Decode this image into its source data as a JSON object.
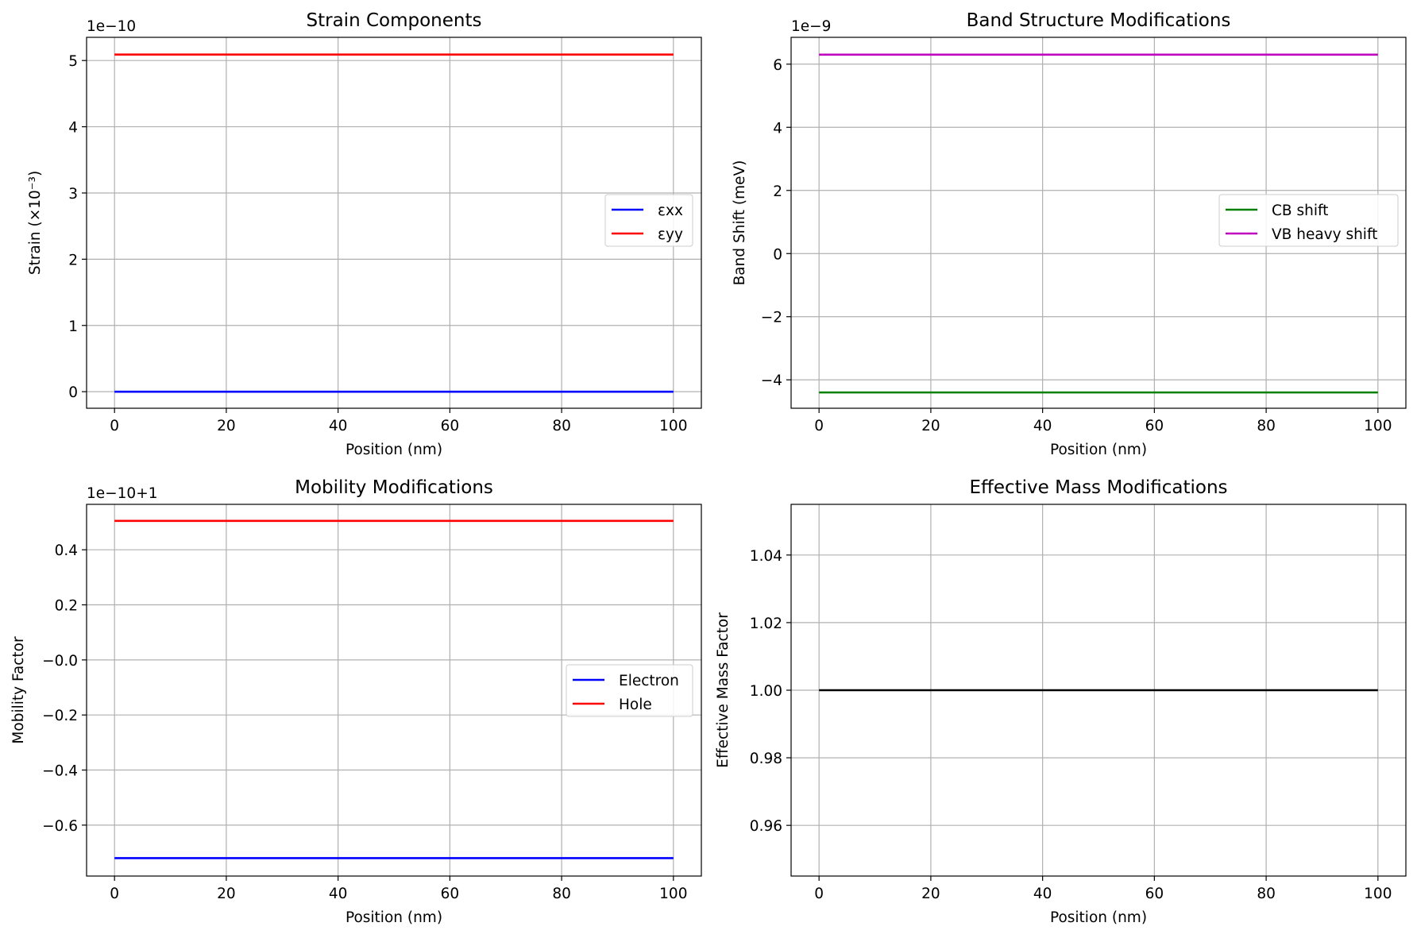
{
  "chart_data": [
    {
      "type": "line",
      "title": "Strain Components",
      "xlabel": "Position (nm)",
      "ylabel": "Strain (×10⁻³)",
      "offset_text": "1e−10",
      "xlim": [
        -5,
        105
      ],
      "ylim": [
        -0.25,
        5.35
      ],
      "xticks": [
        0,
        20,
        40,
        60,
        80,
        100
      ],
      "yticks": [
        0,
        1,
        2,
        3,
        4,
        5
      ],
      "ytick_labels": [
        "0",
        "1",
        "2",
        "3",
        "4",
        "5"
      ],
      "grid": true,
      "legend": "center-right",
      "series": [
        {
          "name": "εxx",
          "color": "#0000ff",
          "x": [
            0,
            100
          ],
          "y": [
            0,
            0
          ]
        },
        {
          "name": "εyy",
          "color": "#ff0000",
          "x": [
            0,
            100
          ],
          "y": [
            5.09,
            5.09
          ]
        }
      ]
    },
    {
      "type": "line",
      "title": "Band Structure Modifications",
      "xlabel": "Position (nm)",
      "ylabel": "Band Shift (meV)",
      "offset_text": "1e−9",
      "xlim": [
        -5,
        105
      ],
      "ylim": [
        -4.9,
        6.85
      ],
      "xticks": [
        0,
        20,
        40,
        60,
        80,
        100
      ],
      "yticks": [
        -4,
        -2,
        0,
        2,
        4,
        6
      ],
      "ytick_labels": [
        "−4",
        "−2",
        "0",
        "2",
        "4",
        "6"
      ],
      "grid": true,
      "legend": "center-right",
      "series": [
        {
          "name": "CB shift",
          "color": "#008000",
          "x": [
            0,
            100
          ],
          "y": [
            -4.4,
            -4.4
          ]
        },
        {
          "name": "VB heavy shift",
          "color": "#bf00bf",
          "x": [
            0,
            100
          ],
          "y": [
            6.3,
            6.3
          ]
        }
      ]
    },
    {
      "type": "line",
      "title": "Mobility Modifications",
      "xlabel": "Position (nm)",
      "ylabel": "Mobility Factor",
      "offset_text": "1e−10+1",
      "xlim": [
        -5,
        105
      ],
      "ylim": [
        -0.785,
        0.565
      ],
      "xticks": [
        0,
        20,
        40,
        60,
        80,
        100
      ],
      "yticks": [
        0.4,
        0.2,
        0.0,
        -0.2,
        -0.4,
        -0.6
      ],
      "ytick_labels": [
        "0.4",
        "0.2",
        "−0.0",
        "−0.2",
        "−0.4",
        "−0.6"
      ],
      "grid": true,
      "legend": "center-right",
      "series": [
        {
          "name": "Electron",
          "color": "#0000ff",
          "x": [
            0,
            100
          ],
          "y": [
            -0.72,
            -0.72
          ]
        },
        {
          "name": "Hole",
          "color": "#ff0000",
          "x": [
            0,
            100
          ],
          "y": [
            0.505,
            0.505
          ]
        }
      ]
    },
    {
      "type": "line",
      "title": "Effective Mass Modifications",
      "xlabel": "Position (nm)",
      "ylabel": "Effective Mass Factor",
      "offset_text": "",
      "xlim": [
        -5,
        105
      ],
      "ylim": [
        0.945,
        1.055
      ],
      "xticks": [
        0,
        20,
        40,
        60,
        80,
        100
      ],
      "yticks": [
        0.96,
        0.98,
        1.0,
        1.02,
        1.04
      ],
      "ytick_labels": [
        "0.96",
        "0.98",
        "1.00",
        "1.02",
        "1.04"
      ],
      "grid": true,
      "legend": "none",
      "series": [
        {
          "color": "#000000",
          "x": [
            0,
            100
          ],
          "y": [
            1.0,
            1.0
          ]
        }
      ]
    }
  ]
}
